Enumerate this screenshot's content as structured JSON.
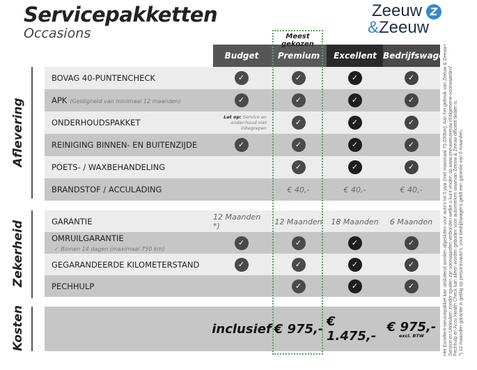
{
  "header": {
    "title": "Servicepakketten",
    "subtitle": "Occasions",
    "logo_line1": "Zeeuw",
    "logo_amp": "&",
    "logo_line2": "Zeeuw",
    "logo_mark": "Z",
    "highlight_label": "Meest gekozen"
  },
  "columns": [
    {
      "label": "Budget",
      "color": "#555555"
    },
    {
      "label": "Premium",
      "color": "#5a5a5a"
    },
    {
      "label": "Excellent",
      "color": "#2a2a2a"
    },
    {
      "label": "Bedrijfswagens",
      "color": "#4a4a4a"
    }
  ],
  "sections": [
    {
      "title": "Aflevering",
      "rows": [
        {
          "label": "BOVAG 40-PUNTENCHECK",
          "sub": "",
          "cells": [
            "check",
            "check",
            "check",
            "check"
          ]
        },
        {
          "label": "APK",
          "sub": "(Geldigheid van minimaal 12 maanden)",
          "cells": [
            "check",
            "check",
            "check",
            "check"
          ]
        },
        {
          "label": "ONDERHOUDSPAKKET",
          "sub": "",
          "cells": [
            "note",
            "check",
            "check",
            "check"
          ]
        },
        {
          "label": "REINIGING BINNEN- EN BUITENZIJDE",
          "sub": "",
          "cells": [
            "check",
            "check",
            "check",
            "check"
          ]
        },
        {
          "label": "POETS- / WAXBEHANDELING",
          "sub": "",
          "cells": [
            "",
            "check",
            "check",
            "check"
          ]
        },
        {
          "label": "BRANDSTOF / ACCULADING",
          "sub": "",
          "cells": [
            "",
            "€ 40,-",
            "€ 40,-",
            "€ 40,-"
          ]
        }
      ]
    },
    {
      "title": "Zekerheid",
      "rows": [
        {
          "label": "GARANTIE",
          "sub": "",
          "cells": [
            "12 Maanden *)",
            "12 Maanden",
            "18 Maanden",
            "6 Maanden"
          ]
        },
        {
          "label": "OMRUILGARANTIE",
          "sub": "✓  Binnen 14 dagen (maximaal 750 km)",
          "cells": [
            "check",
            "check",
            "check",
            "check"
          ]
        },
        {
          "label": "GEGARANDEERDE KILOMETERSTAND",
          "sub": "",
          "cells": [
            "check",
            "check",
            "check",
            "check"
          ]
        },
        {
          "label": "PECHHULP",
          "sub": "",
          "cells": [
            "",
            "check",
            "check",
            "check"
          ]
        }
      ]
    },
    {
      "title": "Kosten",
      "prices": [
        "inclusief",
        "€ 975,-",
        "€ 1.475,-",
        "€ 975,-"
      ],
      "price_note": "excl. BTW"
    }
  ],
  "note": {
    "bold": "Let op:",
    "text": "Service en onder-houd niet inbegrepen"
  },
  "check_colors": [
    "#4a4a4a",
    "#4a4a4a",
    "#1e1e1e",
    "#444444"
  ],
  "footnotes": [
    "Het Excellent-servicepakket kan uitsluitend worden afgesloten voor auto's tot 5 jaar (met maximaal 75.000km). Aan het gebruik van Zeeuw & Zeeuw+",
    "Service en Uitdeuken zonder spuiten zijn voorwaarden verbonden welke u kunt vinden op www.zeeuwenzeeuw.nl/algemene-voorwaarden/.",
    "Pechhulp en Accu Health Check kan alleen worden geboden voor automerken waarvan Zeeuw & Zeeuw officieel dealer is.",
    "*) 12 maanden garantie is geldig op personenauto's, voor bedrijfswagens geldt een garantie van 6 maanden."
  ]
}
